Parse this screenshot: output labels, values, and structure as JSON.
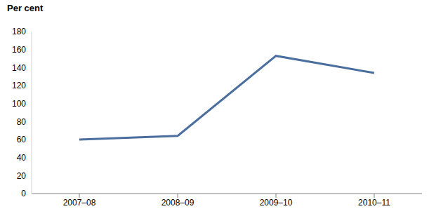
{
  "chart_data": {
    "type": "line",
    "y_label": "Per cent",
    "categories": [
      "2007–08",
      "2008–09",
      "2009–10",
      "2010–11"
    ],
    "values": [
      60,
      64,
      153,
      134
    ],
    "color": "#4a6e9e",
    "ylim": [
      0,
      180
    ],
    "yticks": [
      0,
      20,
      40,
      60,
      80,
      100,
      120,
      140,
      160,
      180
    ],
    "grid": false
  }
}
